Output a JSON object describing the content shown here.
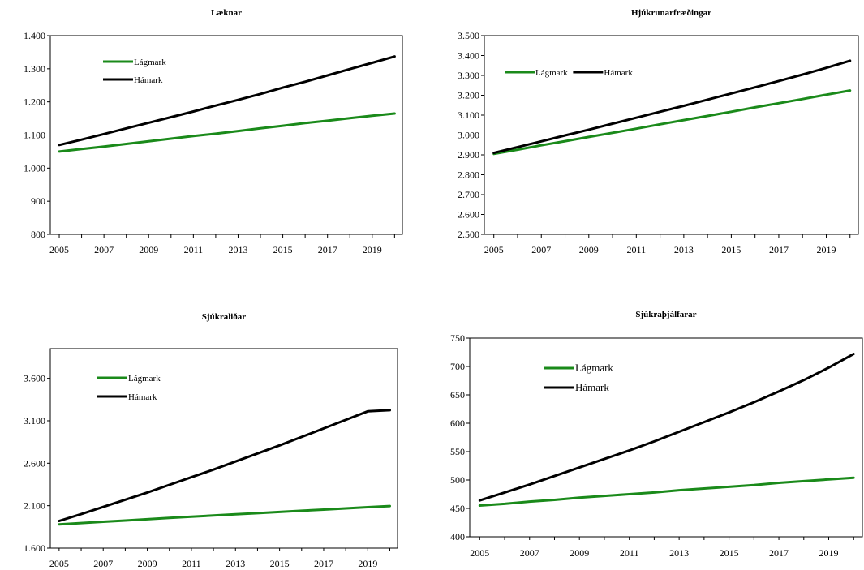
{
  "chart_data": [
    {
      "type": "line",
      "title": "Læknar",
      "x": [
        2005,
        2006,
        2007,
        2008,
        2009,
        2010,
        2011,
        2012,
        2013,
        2014,
        2015,
        2016,
        2017,
        2018,
        2019,
        2020
      ],
      "x_tick_labels": [
        "2005",
        "2007",
        "2009",
        "2011",
        "2013",
        "2015",
        "2017",
        "2019"
      ],
      "ylim": [
        800,
        1400
      ],
      "y_tick_labels": [
        "800",
        "900",
        "1.000",
        "1.100",
        "1.200",
        "1.300",
        "1.400"
      ],
      "series": [
        {
          "name": "Lágmark",
          "color": "#1a8a1a",
          "values": [
            1050,
            1058,
            1065,
            1073,
            1081,
            1089,
            1097,
            1104,
            1112,
            1120,
            1128,
            1136,
            1143,
            1151,
            1158,
            1165
          ]
        },
        {
          "name": "Hámark",
          "color": "#000000",
          "values": [
            1070,
            1086,
            1103,
            1120,
            1137,
            1154,
            1171,
            1189,
            1206,
            1224,
            1243,
            1261,
            1280,
            1299,
            1318,
            1337
          ]
        }
      ],
      "legend": "top-left"
    },
    {
      "type": "line",
      "title": "Hjúkrunarfræðingar",
      "x": [
        2005,
        2006,
        2007,
        2008,
        2009,
        2010,
        2011,
        2012,
        2013,
        2014,
        2015,
        2016,
        2017,
        2018,
        2019,
        2020
      ],
      "x_tick_labels": [
        "2005",
        "2007",
        "2009",
        "2011",
        "2013",
        "2015",
        "2017",
        "2019"
      ],
      "ylim": [
        2500,
        3500
      ],
      "y_tick_labels": [
        "2.500",
        "2.600",
        "2.700",
        "2.800",
        "2.900",
        "3.000",
        "3.100",
        "3.200",
        "3.300",
        "3.400",
        "3.500"
      ],
      "series": [
        {
          "name": "Lágmark",
          "color": "#1a8a1a",
          "values": [
            2905,
            2926,
            2948,
            2969,
            2990,
            3011,
            3032,
            3054,
            3075,
            3096,
            3117,
            3139,
            3160,
            3181,
            3203,
            3224
          ]
        },
        {
          "name": "Hámark",
          "color": "#000000",
          "values": [
            2910,
            2939,
            2968,
            2998,
            3027,
            3057,
            3087,
            3117,
            3147,
            3178,
            3209,
            3240,
            3272,
            3304,
            3338,
            3374
          ]
        }
      ],
      "legend": "top-left"
    },
    {
      "type": "line",
      "title": "Sjúkraliðar",
      "x": [
        2005,
        2006,
        2007,
        2008,
        2009,
        2010,
        2011,
        2012,
        2013,
        2014,
        2015,
        2016,
        2017,
        2018,
        2019,
        2020
      ],
      "x_tick_labels": [
        "2005",
        "2007",
        "2009",
        "2011",
        "2013",
        "2015",
        "2017",
        "2019"
      ],
      "ylim": [
        1600,
        3950
      ],
      "y_tick_labels": [
        "1.600",
        "2.100",
        "2.600",
        "3.100",
        "3.600"
      ],
      "series": [
        {
          "name": "Lágmark",
          "color": "#1a8a1a",
          "values": [
            1880,
            1895,
            1910,
            1925,
            1940,
            1955,
            1970,
            1984,
            1998,
            2012,
            2026,
            2040,
            2054,
            2068,
            2082,
            2096
          ]
        },
        {
          "name": "Hámark",
          "color": "#000000",
          "values": [
            1920,
            2000,
            2085,
            2170,
            2255,
            2345,
            2435,
            2525,
            2620,
            2715,
            2810,
            2910,
            3010,
            3110,
            3212,
            3225
          ]
        }
      ],
      "legend": "top-left"
    },
    {
      "type": "line",
      "title": "Sjúkraþjálfarar",
      "x": [
        2005,
        2006,
        2007,
        2008,
        2009,
        2010,
        2011,
        2012,
        2013,
        2014,
        2015,
        2016,
        2017,
        2018,
        2019,
        2020
      ],
      "x_tick_labels": [
        "2005",
        "2007",
        "2009",
        "2011",
        "2013",
        "2015",
        "2017",
        "2019"
      ],
      "ylim": [
        400,
        750
      ],
      "y_tick_labels": [
        "400",
        "450",
        "500",
        "550",
        "600",
        "650",
        "700",
        "750"
      ],
      "series": [
        {
          "name": "Lágmark",
          "color": "#1a8a1a",
          "values": [
            455,
            458,
            462,
            465,
            469,
            472,
            475,
            478,
            482,
            485,
            488,
            491,
            495,
            498,
            501,
            504
          ]
        },
        {
          "name": "Hámark",
          "color": "#000000",
          "values": [
            464,
            478,
            492,
            507,
            522,
            537,
            552,
            568,
            585,
            602,
            619,
            637,
            656,
            676,
            698,
            722
          ]
        }
      ],
      "legend": "top-left"
    }
  ]
}
